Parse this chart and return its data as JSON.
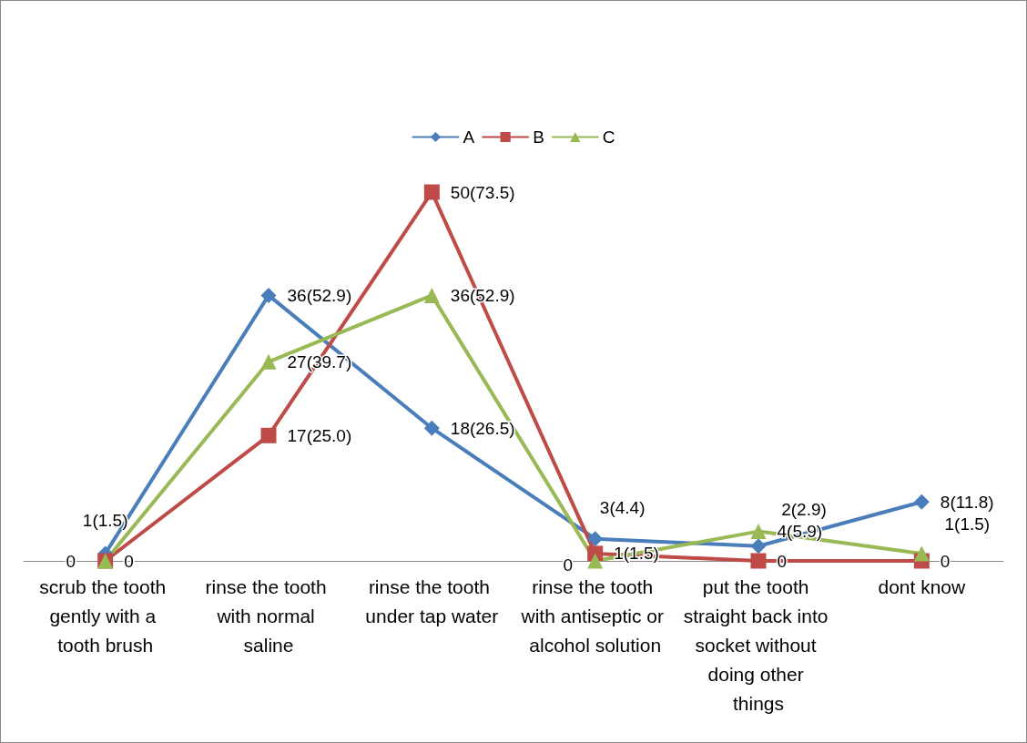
{
  "chart_data": {
    "type": "line",
    "categories": [
      "scrub the tooth gently with a tooth brush",
      "rinse the tooth with normal saline",
      "rinse the tooth under tap water",
      "rinse the tooth with antiseptic or alcohol solution",
      "put the tooth straight back into socket without doing other things",
      "dont know"
    ],
    "series": [
      {
        "name": "A",
        "color": "#4a7ebb",
        "marker": "diamond",
        "values": [
          1,
          36,
          18,
          3,
          2,
          8
        ],
        "value_labels": [
          "1(1.5)",
          "36(52.9)",
          "18(26.5)",
          "3(4.4)",
          "2(2.9)",
          "8(11.8)"
        ]
      },
      {
        "name": "B",
        "color": "#be4b48",
        "marker": "square",
        "values": [
          0,
          17,
          50,
          1,
          0,
          0
        ],
        "value_labels": [
          "0",
          "17(25.0)",
          "50(73.5)",
          "1(1.5)",
          "0",
          "0"
        ]
      },
      {
        "name": "C",
        "color": "#98b954",
        "marker": "triangle",
        "values": [
          0,
          27,
          36,
          0,
          4,
          1
        ],
        "value_labels": [
          "0",
          "27(39.7)",
          "36(52.9)",
          "0",
          "4(5.9)",
          "1(1.5)"
        ]
      }
    ],
    "legend": "top",
    "grid": false,
    "line_style": "solid"
  }
}
